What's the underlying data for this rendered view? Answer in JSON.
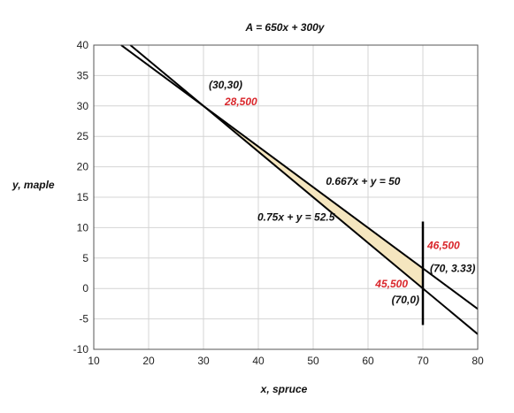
{
  "chart_data": {
    "type": "line",
    "title": "A = 650x + 300y",
    "xlabel": "x, spruce",
    "ylabel": "y, maple",
    "xlim": [
      10,
      80
    ],
    "ylim": [
      -10,
      40
    ],
    "xticks": [
      10,
      20,
      30,
      40,
      50,
      60,
      70,
      80
    ],
    "yticks": [
      -10,
      -5,
      0,
      5,
      10,
      15,
      20,
      25,
      30,
      35,
      40
    ],
    "grid": true,
    "series": [
      {
        "name": "0.667x + y = 50",
        "x": [
          15,
          80
        ],
        "y": [
          39.995,
          -3.36
        ]
      },
      {
        "name": "0.75x + y = 52.5",
        "x": [
          16.667,
          80
        ],
        "y": [
          40,
          -7.5
        ]
      },
      {
        "name": "",
        "x": [
          70,
          70
        ],
        "y": [
          -6,
          11
        ]
      }
    ],
    "feasible_region": {
      "vertices": [
        [
          30,
          30
        ],
        [
          70,
          3.33
        ],
        [
          70,
          0
        ]
      ],
      "color": "#f5e6bf"
    },
    "annotations": [
      {
        "text": "(30,30)",
        "x": 30,
        "y": 30,
        "color": "#111111"
      },
      {
        "text": "28,500",
        "x": 30,
        "y": 30,
        "color": "#d9262b"
      },
      {
        "text": "0.667x + y = 50",
        "x": 52,
        "y": 17,
        "color": "#111111"
      },
      {
        "text": "0.75x + y = 52.5",
        "x": 40,
        "y": 12,
        "color": "#111111"
      },
      {
        "text": "46,500",
        "x": 70,
        "y": 3.33,
        "color": "#d9262b"
      },
      {
        "text": "(70, 3.33)",
        "x": 70,
        "y": 3.33,
        "color": "#111111"
      },
      {
        "text": "45,500",
        "x": 70,
        "y": 0,
        "color": "#d9262b"
      },
      {
        "text": "(70,0)",
        "x": 70,
        "y": 0,
        "color": "#111111"
      }
    ]
  }
}
